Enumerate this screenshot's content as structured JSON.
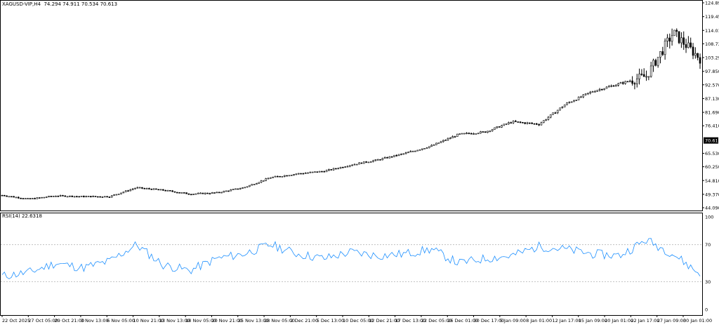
{
  "main_chart": {
    "symbol": "XAGUSD-VIP,H4",
    "ohlc": "74.294 74.911 70.534 70.613",
    "current_price": "70.613",
    "price_axis": [
      "124.890",
      "119.450",
      "114.010",
      "108.730",
      "103.290",
      "97.850",
      "92.570",
      "87.130",
      "81.690",
      "76.410",
      "70.613",
      "65.530",
      "60.250",
      "54.810",
      "49.370",
      "44.090"
    ]
  },
  "rsi_panel": {
    "label": "RSI(14) 22.6318",
    "axis": [
      "100",
      "70",
      "30",
      "0"
    ]
  },
  "time_axis": [
    "22 Oct 2025",
    "27 Oct 05:00",
    "29 Oct 21:00",
    "3 Nov 13:00",
    "6 Nov 05:00",
    "10 Nov 21:00",
    "13 Nov 13:00",
    "18 Nov 05:00",
    "20 Nov 21:00",
    "25 Nov 13:00",
    "28 Nov 05:00",
    "2 Dec 21:00",
    "5 Dec 13:00",
    "10 Dec 05:00",
    "12 Dec 21:00",
    "17 Dec 13:00",
    "22 Dec 05:00",
    "26 Dec 01:00",
    "30 Dec 17:00",
    "5 Jan 09:00",
    "8 Jan 01:00",
    "12 Jan 17:00",
    "15 Jan 09:00",
    "20 Jan 01:00",
    "22 Jan 17:00",
    "27 Jan 09:00",
    "30 Jan 01:00"
  ],
  "chart_data": [
    {
      "type": "line",
      "title": "XAGUSD-VIP,H4",
      "xlabel": "",
      "ylabel": "",
      "x": [
        "22 Oct 2025",
        "27 Oct 05:00",
        "29 Oct 21:00",
        "3 Nov 13:00",
        "6 Nov 05:00",
        "10 Nov 21:00",
        "13 Nov 13:00",
        "18 Nov 05:00",
        "20 Nov 21:00",
        "25 Nov 13:00",
        "28 Nov 05:00",
        "2 Dec 21:00",
        "5 Dec 13:00",
        "10 Dec 05:00",
        "12 Dec 21:00",
        "17 Dec 13:00",
        "22 Dec 05:00",
        "26 Dec 01:00",
        "30 Dec 17:00",
        "5 Jan 09:00",
        "8 Jan 01:00",
        "12 Jan 17:00",
        "15 Jan 09:00",
        "20 Jan 01:00",
        "22 Jan 17:00",
        "27 Jan 09:00",
        "30 Jan 01:00"
      ],
      "series": [
        {
          "name": "XAGUSD-VIP,H4",
          "values": [
            49,
            47.5,
            48.8,
            48.5,
            48.5,
            52,
            51,
            49.5,
            50,
            52,
            56,
            57.5,
            58.5,
            61,
            63,
            65.5,
            68.5,
            73,
            74,
            78,
            77,
            85,
            90,
            93,
            96,
            113,
            103
          ]
        }
      ],
      "ylim": [
        44.09,
        124.89
      ],
      "current": 70.613
    },
    {
      "type": "line",
      "title": "RSI(14) 22.6318",
      "xlabel": "",
      "ylabel": "",
      "x": [
        "22 Oct 2025",
        "27 Oct 05:00",
        "29 Oct 21:00",
        "3 Nov 13:00",
        "6 Nov 05:00",
        "10 Nov 21:00",
        "13 Nov 13:00",
        "18 Nov 05:00",
        "20 Nov 21:00",
        "25 Nov 13:00",
        "28 Nov 05:00",
        "2 Dec 21:00",
        "5 Dec 13:00",
        "10 Dec 05:00",
        "12 Dec 21:00",
        "17 Dec 13:00",
        "22 Dec 05:00",
        "26 Dec 01:00",
        "30 Dec 17:00",
        "5 Jan 09:00",
        "8 Jan 01:00",
        "12 Jan 17:00",
        "15 Jan 09:00",
        "20 Jan 01:00",
        "22 Jan 17:00",
        "27 Jan 09:00",
        "30 Jan 01:00"
      ],
      "series": [
        {
          "name": "RSI(14)",
          "values": [
            36,
            40,
            50,
            45,
            52,
            70,
            48,
            42,
            55,
            60,
            70,
            60,
            55,
            62,
            58,
            60,
            65,
            50,
            55,
            58,
            68,
            65,
            60,
            58,
            75,
            60,
            38
          ]
        }
      ],
      "ylim": [
        0,
        100
      ],
      "levels": [
        70,
        30
      ]
    }
  ],
  "colors": {
    "candle": "#000000",
    "rsi": "#1e90ff",
    "grid": "#c0c0c0",
    "price_tag_bg": "#000000",
    "price_tag_fg": "#ffffff"
  }
}
